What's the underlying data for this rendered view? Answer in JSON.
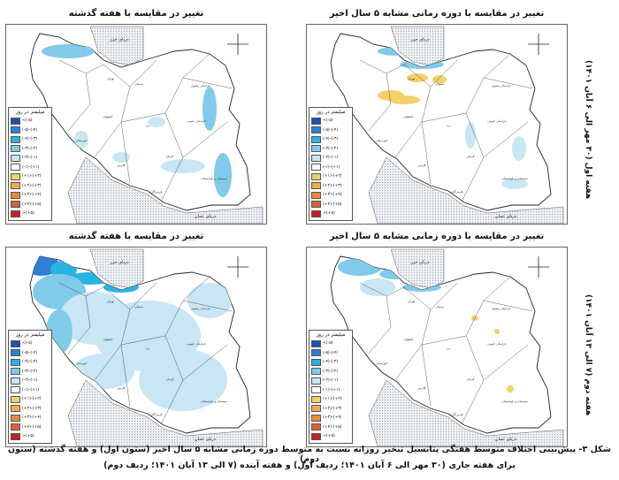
{
  "panels": [
    {
      "title": "تغییر در مقایسه با هفته گذشته"
    },
    {
      "title": "تغییر در مقایسه با دوره زمانی مشابه ۵ سال اخیر"
    },
    {
      "title": "تغییر در مقایسه با هفته گذشته"
    },
    {
      "title": "تغییر در مقایسه با دوره زمانی مشابه ۵ سال اخیر"
    }
  ],
  "map_labels": {
    "caspian": "دریای خزر",
    "oman": "دریای عمان",
    "tehran": "تهران",
    "isfahan": "اصفهان",
    "kerman": "کرمان",
    "fars": "فارس",
    "yazd": "یزد",
    "semnan": "سمنان",
    "sistan": "سیستان و بلوچستان",
    "khorasan_razavi": "خراسان رضوی",
    "khorasan_south": "خراسان جنوبی",
    "khuzestan": "خوزستان",
    "hormozgan": "هرمزگان"
  },
  "legend": {
    "title": "میلیمتر در روز",
    "items": [
      {
        "label": "<(-۵)",
        "color": "#1f4fb8"
      },
      {
        "label": "(-۵)-(-۴)",
        "color": "#2f7fd6"
      },
      {
        "label": "(-۴)-(-۳)",
        "color": "#28b3e2"
      },
      {
        "label": "(-۳)-(-۲)",
        "color": "#7fcbe9"
      },
      {
        "label": "(-۲)-(-۱)",
        "color": "#c8e6f4"
      },
      {
        "label": "(-۱)-(+۱)",
        "color": "#ffffff"
      },
      {
        "label": "(+۱)-(+۲)",
        "color": "#f4d06a"
      },
      {
        "label": "(+۲)-(+۳)",
        "color": "#efad4e"
      },
      {
        "label": "(+۳)-(+۴)",
        "color": "#e88a3c"
      },
      {
        "label": "(+۴)-(+۵)",
        "color": "#de5f38"
      },
      {
        "label": ">(+۵)",
        "color": "#cc1f1f"
      }
    ]
  },
  "row_labels": [
    "هفته اول (۳۰ مهر الی ۶ آبان ۱۴۰۱)",
    "هفته دوم (۷ الی ۱۳ آبان ۱۴۰۱)"
  ],
  "caption": {
    "line1": "شکل ۳- پیش‌بینی اختلاف متوسط هفتگی پتانسیل تبخیر روزانه نسبت به متوسط دوره زمانی مشابه ۵ سال اخیر (ستون اول) و هفته گذشته (ستون دوم)",
    "line2": "برای هفته جاری (۳۰ مهر الی ۶ آبان ۱۴۰۱؛ ردیف اول) و هفته آینده (۷ الی ۱۳ آبان ۱۴۰۱؛ ردیف دوم)"
  }
}
